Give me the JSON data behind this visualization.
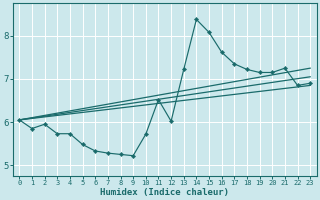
{
  "xlabel": "Humidex (Indice chaleur)",
  "bg_color": "#cce8ec",
  "grid_color": "#b0d4d8",
  "line_color": "#1a6b6b",
  "xlim": [
    -0.5,
    23.5
  ],
  "ylim": [
    4.75,
    8.75
  ],
  "xticks": [
    0,
    1,
    2,
    3,
    4,
    5,
    6,
    7,
    8,
    9,
    10,
    11,
    12,
    13,
    14,
    15,
    16,
    17,
    18,
    19,
    20,
    21,
    22,
    23
  ],
  "yticks": [
    5,
    6,
    7,
    8
  ],
  "series_main": {
    "x": [
      0,
      1,
      2,
      3,
      4,
      5,
      6,
      7,
      8,
      9,
      10,
      11,
      12,
      13,
      14,
      15,
      16,
      17,
      18,
      19,
      20,
      21,
      22,
      23
    ],
    "y": [
      6.05,
      5.85,
      5.95,
      5.73,
      5.73,
      5.48,
      5.33,
      5.28,
      5.25,
      5.22,
      5.72,
      6.52,
      6.02,
      7.22,
      8.38,
      8.08,
      7.62,
      7.35,
      7.22,
      7.15,
      7.15,
      7.25,
      6.85,
      6.9
    ]
  },
  "series_lines": [
    {
      "x": [
        0,
        23
      ],
      "y": [
        6.05,
        6.85
      ]
    },
    {
      "x": [
        0,
        23
      ],
      "y": [
        6.05,
        7.05
      ]
    },
    {
      "x": [
        0,
        23
      ],
      "y": [
        6.05,
        7.25
      ]
    }
  ]
}
